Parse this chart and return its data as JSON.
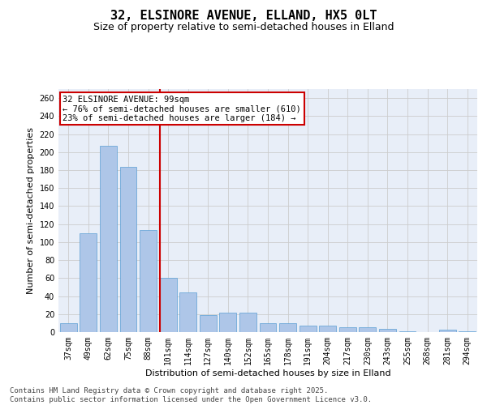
{
  "title": "32, ELSINORE AVENUE, ELLAND, HX5 0LT",
  "subtitle": "Size of property relative to semi-detached houses in Elland",
  "xlabel": "Distribution of semi-detached houses by size in Elland",
  "ylabel": "Number of semi-detached properties",
  "categories": [
    "37sqm",
    "49sqm",
    "62sqm",
    "75sqm",
    "88sqm",
    "101sqm",
    "114sqm",
    "127sqm",
    "140sqm",
    "152sqm",
    "165sqm",
    "178sqm",
    "191sqm",
    "204sqm",
    "217sqm",
    "230sqm",
    "243sqm",
    "255sqm",
    "268sqm",
    "281sqm",
    "294sqm"
  ],
  "values": [
    10,
    110,
    207,
    184,
    113,
    60,
    44,
    19,
    22,
    22,
    10,
    10,
    7,
    7,
    5,
    5,
    4,
    1,
    0,
    3,
    1
  ],
  "bar_color": "#aec6e8",
  "bar_edge_color": "#5a9fd4",
  "highlight_index": 5,
  "highlight_line_color": "#cc0000",
  "property_size": "99sqm",
  "pct_smaller": 76,
  "count_smaller": 610,
  "pct_larger": 23,
  "count_larger": 184,
  "annotation_box_color": "#cc0000",
  "ylim": [
    0,
    270
  ],
  "yticks": [
    0,
    20,
    40,
    60,
    80,
    100,
    120,
    140,
    160,
    180,
    200,
    220,
    240,
    260
  ],
  "grid_color": "#cccccc",
  "bg_color": "#e8eef8",
  "footer": "Contains HM Land Registry data © Crown copyright and database right 2025.\nContains public sector information licensed under the Open Government Licence v3.0.",
  "title_fontsize": 11,
  "subtitle_fontsize": 9,
  "label_fontsize": 8,
  "tick_fontsize": 7,
  "footer_fontsize": 6.5,
  "annot_fontsize": 7.5
}
